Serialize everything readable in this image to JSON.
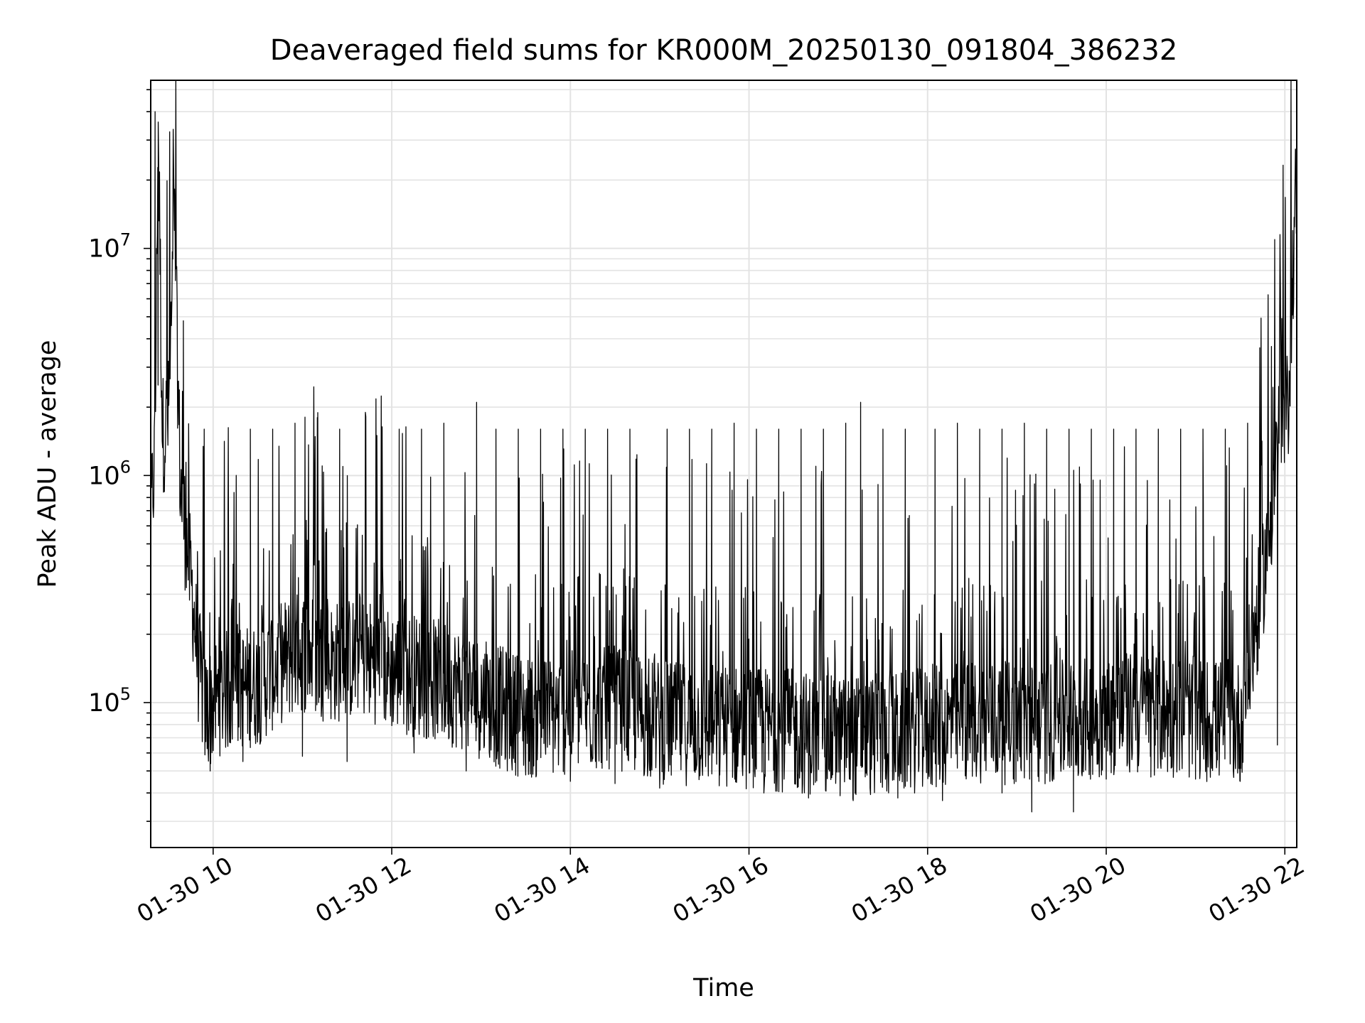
{
  "chart_data": {
    "type": "line",
    "title": "Deaveraged field sums for KR000M_20250130_091804_386232",
    "xlabel": "Time",
    "ylabel": "Peak ADU - average",
    "yscale": "log",
    "xlim": [
      "2025-01-30T09:18:04",
      "2025-01-30T22:08:00"
    ],
    "ylim": [
      23000,
      55000000
    ],
    "grid": true,
    "x_ticks": [
      {
        "value": "2025-01-30T10:00",
        "label": "01-30 10"
      },
      {
        "value": "2025-01-30T12:00",
        "label": "01-30 12"
      },
      {
        "value": "2025-01-30T14:00",
        "label": "01-30 14"
      },
      {
        "value": "2025-01-30T16:00",
        "label": "01-30 16"
      },
      {
        "value": "2025-01-30T18:00",
        "label": "01-30 18"
      },
      {
        "value": "2025-01-30T20:00",
        "label": "01-30 20"
      },
      {
        "value": "2025-01-30T22:00",
        "label": "01-30 22"
      }
    ],
    "y_ticks": [
      {
        "value": 100000,
        "base": "10",
        "exp": "5"
      },
      {
        "value": 1000000,
        "base": "10",
        "exp": "6"
      },
      {
        "value": 10000000,
        "base": "10",
        "exp": "7"
      }
    ],
    "series": [
      {
        "color": "#000000",
        "x": [
          "2025-01-30T09:18",
          "2025-01-30T09:21",
          "2025-01-30T09:23",
          "2025-01-30T09:26",
          "2025-01-30T09:30",
          "2025-01-30T09:34",
          "2025-01-30T09:38",
          "2025-01-30T09:42",
          "2025-01-30T09:46",
          "2025-01-30T09:50",
          "2025-01-30T09:55",
          "2025-01-30T10:05",
          "2025-01-30T10:15",
          "2025-01-30T10:30",
          "2025-01-30T10:45",
          "2025-01-30T11:00",
          "2025-01-30T11:20",
          "2025-01-30T11:40",
          "2025-01-30T12:00",
          "2025-01-30T12:20",
          "2025-01-30T12:40",
          "2025-01-30T13:00",
          "2025-01-30T13:20",
          "2025-01-30T13:40",
          "2025-01-30T14:00",
          "2025-01-30T14:30",
          "2025-01-30T15:00",
          "2025-01-30T15:30",
          "2025-01-30T16:00",
          "2025-01-30T16:30",
          "2025-01-30T17:00",
          "2025-01-30T17:30",
          "2025-01-30T18:00",
          "2025-01-30T18:30",
          "2025-01-30T19:00",
          "2025-01-30T19:30",
          "2025-01-30T20:00",
          "2025-01-30T20:30",
          "2025-01-30T21:00",
          "2025-01-30T21:30",
          "2025-01-30T21:42",
          "2025-01-30T21:50",
          "2025-01-30T21:56",
          "2025-01-30T22:02",
          "2025-01-30T22:07"
        ],
        "y": [
          600000,
          1300000,
          40000000,
          1500000,
          1800000,
          12000000,
          900000,
          520000,
          300000,
          150000,
          90000,
          110000,
          115000,
          120000,
          150000,
          170000,
          150000,
          160000,
          140000,
          130000,
          120000,
          105000,
          90000,
          85000,
          90000,
          95000,
          82000,
          80000,
          78000,
          75000,
          70000,
          72000,
          76000,
          84000,
          80000,
          82000,
          88000,
          90000,
          85000,
          82000,
          250000,
          600000,
          1500000,
          1900000,
          16000000
        ],
        "peak_x": [
          "2025-01-30T09:21",
          "2025-01-30T09:23",
          "2025-01-30T09:34",
          "2025-01-30T09:40",
          "2025-01-30T09:54",
          "2025-01-30T10:10",
          "2025-01-30T10:25",
          "2025-01-30T10:40",
          "2025-01-30T10:55",
          "2025-01-30T11:10",
          "2025-01-30T11:25",
          "2025-01-30T11:50",
          "2025-01-30T12:05",
          "2025-01-30T12:20",
          "2025-01-30T12:35",
          "2025-01-30T12:57",
          "2025-01-30T13:10",
          "2025-01-30T13:25",
          "2025-01-30T13:40",
          "2025-01-30T13:55",
          "2025-01-30T14:10",
          "2025-01-30T14:25",
          "2025-01-30T14:40",
          "2025-01-30T15:05",
          "2025-01-30T15:20",
          "2025-01-30T15:35",
          "2025-01-30T15:50",
          "2025-01-30T16:05",
          "2025-01-30T16:20",
          "2025-01-30T16:35",
          "2025-01-30T16:50",
          "2025-01-30T17:05",
          "2025-01-30T17:15",
          "2025-01-30T17:30",
          "2025-01-30T17:45",
          "2025-01-30T18:05",
          "2025-01-30T18:20",
          "2025-01-30T18:35",
          "2025-01-30T18:50",
          "2025-01-30T19:05",
          "2025-01-30T19:20",
          "2025-01-30T19:35",
          "2025-01-30T19:50",
          "2025-01-30T20:05",
          "2025-01-30T20:20",
          "2025-01-30T20:35",
          "2025-01-30T20:50",
          "2025-01-30T21:05",
          "2025-01-30T21:20",
          "2025-01-30T21:35",
          "2025-01-30T21:51"
        ],
        "peak_y": [
          40000000,
          2500000,
          12000000,
          4800000,
          1600000,
          700000,
          1600000,
          1600000,
          1700000,
          1800000,
          1600000,
          1500000,
          1600000,
          1600000,
          1700000,
          2100000,
          1600000,
          1600000,
          1600000,
          1600000,
          1600000,
          1600000,
          1600000,
          1600000,
          1600000,
          1600000,
          1700000,
          1600000,
          1600000,
          1600000,
          1600000,
          1700000,
          2100000,
          1600000,
          1600000,
          1600000,
          1700000,
          1600000,
          1600000,
          1700000,
          1600000,
          1600000,
          1600000,
          1600000,
          1600000,
          1600000,
          1600000,
          1600000,
          1600000,
          1700000,
          3700000
        ],
        "trough_x": [
          "2025-01-30T09:58",
          "2025-01-30T10:20",
          "2025-01-30T11:00",
          "2025-01-30T11:30",
          "2025-01-30T12:15",
          "2025-01-30T12:50",
          "2025-01-30T13:30",
          "2025-01-30T14:00",
          "2025-01-30T14:30",
          "2025-01-30T15:00",
          "2025-01-30T15:40",
          "2025-01-30T16:10",
          "2025-01-30T16:40",
          "2025-01-30T17:10",
          "2025-01-30T17:40",
          "2025-01-30T18:10",
          "2025-01-30T18:50",
          "2025-01-30T19:10",
          "2025-01-30T19:38",
          "2025-01-30T20:00",
          "2025-01-30T20:30",
          "2025-01-30T21:00",
          "2025-01-30T21:30",
          "2025-01-30T21:55"
        ],
        "trough_y": [
          50000,
          55000,
          58000,
          55000,
          60000,
          50000,
          48000,
          45000,
          44000,
          42000,
          43000,
          40000,
          38000,
          37000,
          38000,
          37000,
          40000,
          33000,
          33000,
          46000,
          47000,
          46000,
          45000,
          65000
        ]
      }
    ]
  }
}
